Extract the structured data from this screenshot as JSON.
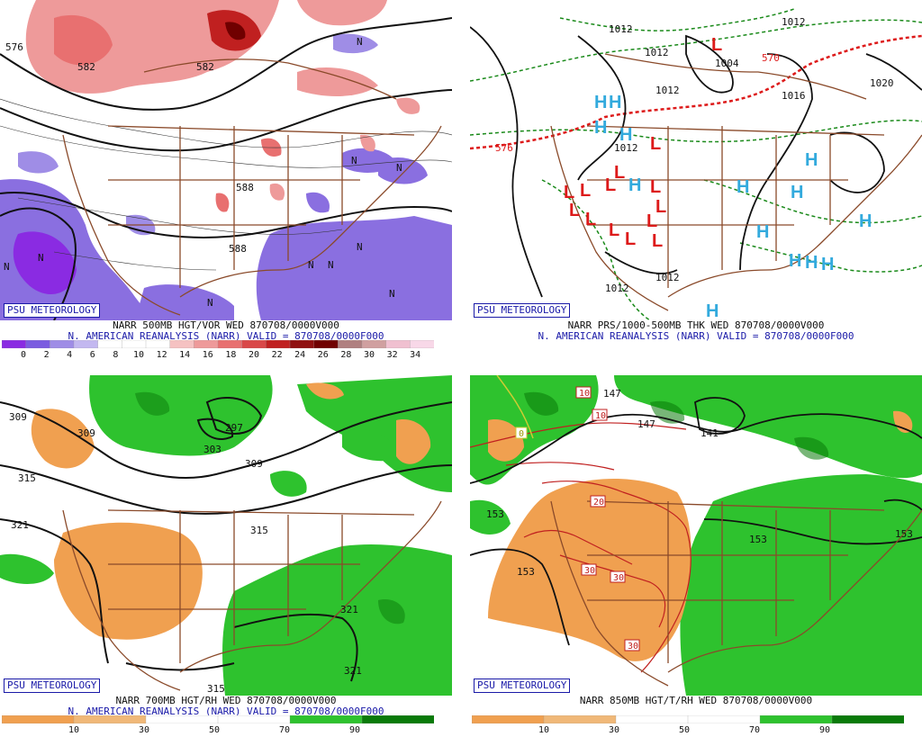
{
  "badge": "PSU METEOROLOGY",
  "panels": [
    {
      "caption1": "NARR 500MB HGT/VOR WED 870708/0000V000",
      "caption2": "N. AMERICAN REANALYSIS (NARR) VALID = 870708/0000F000",
      "colorbar": {
        "ticks": [
          "0",
          "2",
          "4",
          "6",
          "8",
          "10",
          "12",
          "14",
          "16",
          "18",
          "20",
          "22",
          "24",
          "26",
          "28",
          "30",
          "32",
          "34"
        ],
        "colors": [
          "#8a2be2",
          "#7b5ce0",
          "#9f8de6",
          "#c3b8f0",
          "#ffffff",
          "#ffffff",
          "#ffffff",
          "#f5c2c2",
          "#ee9a9a",
          "#e87070",
          "#d94848",
          "#c02020",
          "#901010",
          "#700000",
          "#b08080",
          "#d0a0a0",
          "#f0c0d0",
          "#f8d8e8"
        ]
      },
      "contour_labels": [
        "576",
        "582",
        "588",
        "582",
        "588"
      ],
      "symbols": [
        "N",
        "N",
        "N",
        "N",
        "N",
        "N",
        "N",
        "N",
        "N",
        "N"
      ]
    },
    {
      "caption1": "NARR PRS/1000-500MB THK WED 870708/0000V000",
      "caption2": "N. AMERICAN REANALYSIS (NARR) VALID = 870708/0000F000",
      "contour_labels": [
        "1012",
        "1012",
        "1012",
        "1004",
        "1012",
        "1016",
        "1020",
        "1012",
        "1012",
        "1012",
        "570",
        "576"
      ],
      "highs": [
        "H",
        "H",
        "H",
        "H",
        "H",
        "H",
        "H",
        "H",
        "H",
        "H",
        "H",
        "H",
        "H",
        "H"
      ],
      "lows": [
        "L",
        "L",
        "L",
        "L",
        "L",
        "L",
        "L",
        "L",
        "L",
        "L",
        "L",
        "L",
        "L",
        "L"
      ]
    },
    {
      "caption1": "NARR 700MB HGT/RH WED 870708/0000V000",
      "caption2": "N. AMERICAN REANALYSIS (NARR) VALID = 870708/0000F000",
      "colorbar": {
        "ticks": [
          "10",
          "30",
          "50",
          "70",
          "90"
        ],
        "colors": [
          "#f0a050",
          "#f0b878",
          "#ffffff",
          "#ffffff",
          "#2ec22e",
          "#0a7a0a"
        ]
      },
      "contour_labels": [
        "309",
        "309",
        "315",
        "321",
        "303",
        "297",
        "309",
        "315",
        "321",
        "315",
        "321"
      ]
    },
    {
      "caption1": "NARR 850MB HGT/T/RH WED 870708/0000V000",
      "caption2": "",
      "colorbar": {
        "ticks": [
          "10",
          "30",
          "50",
          "70",
          "90"
        ],
        "colors": [
          "#f0a050",
          "#f0b878",
          "#ffffff",
          "#ffffff",
          "#2ec22e",
          "#0a7a0a"
        ]
      },
      "contour_labels": [
        "147",
        "147",
        "141",
        "153",
        "153",
        "153",
        "153"
      ],
      "temp_labels": [
        "10",
        "10",
        "0",
        "20",
        "30",
        "30",
        "30"
      ]
    }
  ]
}
